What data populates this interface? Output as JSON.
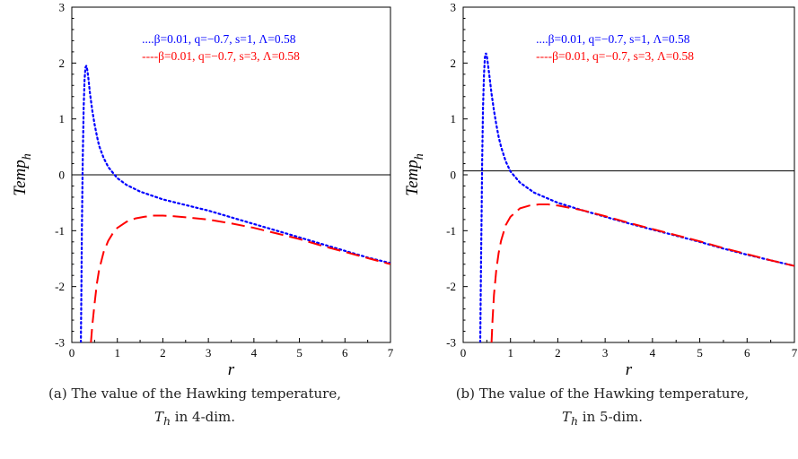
{
  "chart_data": [
    {
      "type": "line",
      "xlabel": "r",
      "ylabel": "Temp",
      "ylabel_sub": "h",
      "xlim": [
        0,
        7
      ],
      "ylim": [
        -3,
        3
      ],
      "x_ticks": [
        "0",
        "1",
        "2",
        "3",
        "4",
        "5",
        "6",
        "7"
      ],
      "y_ticks": [
        "3",
        "2",
        "1",
        "0",
        "-1",
        "-2",
        "-3"
      ],
      "legend_placement": "top-right",
      "zero_line": true,
      "series": [
        {
          "name": "....β=0.01, q=−0.7, s=1, Λ=0.58",
          "color": "#0000ff",
          "style": "dotted",
          "x": [
            0.2,
            0.21,
            0.22,
            0.24,
            0.26,
            0.28,
            0.3,
            0.32,
            0.34,
            0.36,
            0.38,
            0.4,
            0.45,
            0.5,
            0.55,
            0.6,
            0.7,
            0.8,
            0.9,
            1.0,
            1.2,
            1.5,
            2.0,
            2.5,
            3.0,
            3.5,
            4.0,
            4.5,
            5.0,
            5.5,
            6.0,
            6.5,
            7.0
          ],
          "y": [
            -3,
            -2.0,
            -1.0,
            0.3,
            1.2,
            1.7,
            1.92,
            1.95,
            1.88,
            1.75,
            1.6,
            1.45,
            1.15,
            0.9,
            0.7,
            0.52,
            0.3,
            0.14,
            0.04,
            -0.06,
            -0.18,
            -0.3,
            -0.44,
            -0.54,
            -0.64,
            -0.76,
            -0.88,
            -1.0,
            -1.12,
            -1.24,
            -1.36,
            -1.48,
            -1.58
          ]
        },
        {
          "name": "----β=0.01,  q=−0.7, s=3, Λ=0.58",
          "color": "#ff0000",
          "style": "dashed",
          "x": [
            0.42,
            0.45,
            0.5,
            0.55,
            0.6,
            0.7,
            0.8,
            0.9,
            1.0,
            1.2,
            1.4,
            1.6,
            1.8,
            2.0,
            2.2,
            2.5,
            3.0,
            3.5,
            4.0,
            4.5,
            5.0,
            5.5,
            6.0,
            6.5,
            7.0
          ],
          "y": [
            -3,
            -2.7,
            -2.3,
            -1.95,
            -1.7,
            -1.38,
            -1.18,
            -1.05,
            -0.95,
            -0.84,
            -0.78,
            -0.75,
            -0.73,
            -0.73,
            -0.74,
            -0.76,
            -0.8,
            -0.87,
            -0.95,
            -1.05,
            -1.15,
            -1.27,
            -1.38,
            -1.49,
            -1.6
          ]
        }
      ]
    },
    {
      "type": "line",
      "xlabel": "r",
      "ylabel": "Temp",
      "ylabel_sub": "h",
      "xlim": [
        0,
        7
      ],
      "ylim": [
        -3,
        3
      ],
      "x_ticks": [
        "0",
        "1",
        "2",
        "3",
        "4",
        "5",
        "6",
        "7"
      ],
      "y_ticks": [
        "3",
        "2",
        "1",
        "0",
        "-1",
        "-2",
        "-3"
      ],
      "legend_placement": "top-right",
      "zero_line": true,
      "zero_line_y": 0.07,
      "series": [
        {
          "name": "....β=0.01, q=−0.7, s=1, Λ=0.58",
          "color": "#0000ff",
          "style": "dotted",
          "x": [
            0.36,
            0.37,
            0.38,
            0.39,
            0.4,
            0.42,
            0.44,
            0.46,
            0.48,
            0.5,
            0.52,
            0.55,
            0.6,
            0.65,
            0.7,
            0.75,
            0.8,
            0.9,
            1.0,
            1.2,
            1.5,
            2.0,
            2.5,
            3.0,
            3.5,
            4.0,
            4.5,
            5.0,
            5.5,
            6.0,
            6.5,
            7.0
          ],
          "y": [
            -3,
            -2.2,
            -1.4,
            -0.6,
            0.2,
            1.2,
            1.8,
            2.1,
            2.18,
            2.12,
            2.0,
            1.8,
            1.45,
            1.15,
            0.9,
            0.68,
            0.5,
            0.24,
            0.06,
            -0.14,
            -0.32,
            -0.5,
            -0.63,
            -0.75,
            -0.87,
            -0.98,
            -1.09,
            -1.2,
            -1.32,
            -1.43,
            -1.53,
            -1.63
          ]
        },
        {
          "name": "----β=0.01, q=−0.7, s=3, Λ=0.58",
          "color": "#ff0000",
          "style": "dashed",
          "x": [
            0.6,
            0.62,
            0.65,
            0.7,
            0.75,
            0.8,
            0.9,
            1.0,
            1.2,
            1.4,
            1.6,
            1.8,
            2.0,
            2.5,
            3.0,
            3.5,
            4.0,
            4.5,
            5.0,
            5.5,
            6.0,
            6.5,
            7.0
          ],
          "y": [
            -3,
            -2.6,
            -2.15,
            -1.7,
            -1.4,
            -1.18,
            -0.9,
            -0.75,
            -0.6,
            -0.55,
            -0.53,
            -0.53,
            -0.55,
            -0.63,
            -0.74,
            -0.86,
            -0.97,
            -1.08,
            -1.19,
            -1.31,
            -1.42,
            -1.53,
            -1.63
          ]
        }
      ]
    }
  ],
  "captions": [
    {
      "prefix": "(a) The value of the Hawking temperature,",
      "var": "T",
      "sub": "h",
      "suffix": " in 4-dim."
    },
    {
      "prefix": "(b) The value of the Hawking temperature,",
      "var": "T",
      "sub": "h",
      "suffix": " in 5-dim."
    }
  ]
}
